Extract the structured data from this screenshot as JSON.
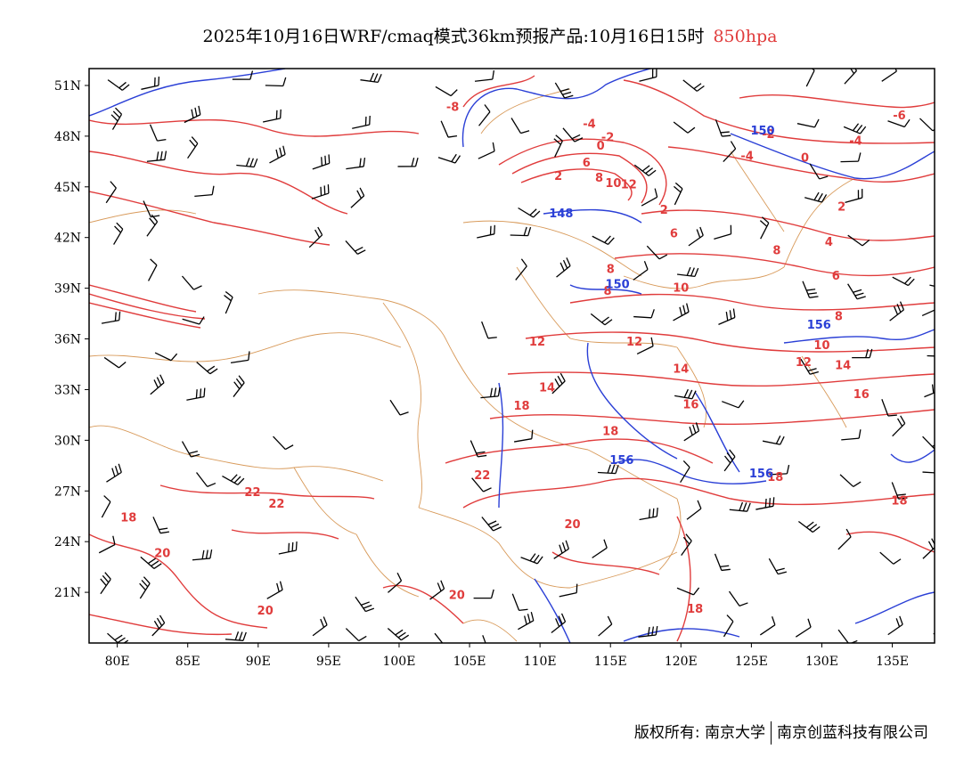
{
  "title": {
    "main": "2025年10月16日WRF/cmaq模式36km预报产品:10月16日15时",
    "level": "850hpa",
    "level_color": "#e03c3c"
  },
  "axes": {
    "lon_labels": [
      "80E",
      "85E",
      "90E",
      "95E",
      "100E",
      "105E",
      "110E",
      "115E",
      "120E",
      "125E",
      "130E",
      "135E"
    ],
    "lon_values": [
      80,
      85,
      90,
      95,
      100,
      105,
      110,
      115,
      120,
      125,
      130,
      135
    ],
    "lat_labels": [
      "51N",
      "48N",
      "45N",
      "42N",
      "39N",
      "36N",
      "33N",
      "30N",
      "27N",
      "24N",
      "21N"
    ],
    "lat_values": [
      51,
      48,
      45,
      42,
      39,
      36,
      33,
      30,
      27,
      24,
      21
    ],
    "lon_range": [
      78,
      138
    ],
    "lat_range": [
      18,
      52
    ]
  },
  "contour_labels": {
    "temperature_color": "#e03c3c",
    "height_color": "#2a3fd6",
    "temperature": [
      {
        "text": "-8",
        "lon": 103.8,
        "lat": 49.5
      },
      {
        "text": "-4",
        "lon": 113.5,
        "lat": 48.5
      },
      {
        "text": "-2",
        "lon": 114.8,
        "lat": 47.7
      },
      {
        "text": "0",
        "lon": 114.3,
        "lat": 47.2
      },
      {
        "text": "2",
        "lon": 111.3,
        "lat": 45.4
      },
      {
        "text": "6",
        "lon": 113.3,
        "lat": 46.2
      },
      {
        "text": "8",
        "lon": 114.2,
        "lat": 45.3
      },
      {
        "text": "10",
        "lon": 115.2,
        "lat": 45.0
      },
      {
        "text": "12",
        "lon": 116.3,
        "lat": 44.9
      },
      {
        "text": "-6",
        "lon": 135.5,
        "lat": 49.0
      },
      {
        "text": "-4",
        "lon": 132.4,
        "lat": 47.5
      },
      {
        "text": "-2",
        "lon": 126.2,
        "lat": 47.9
      },
      {
        "text": "-4",
        "lon": 124.7,
        "lat": 46.6
      },
      {
        "text": "0",
        "lon": 128.8,
        "lat": 46.5
      },
      {
        "text": "2",
        "lon": 118.8,
        "lat": 43.4
      },
      {
        "text": "2",
        "lon": 131.4,
        "lat": 43.6
      },
      {
        "text": "6",
        "lon": 119.5,
        "lat": 42.0
      },
      {
        "text": "4",
        "lon": 130.5,
        "lat": 41.5
      },
      {
        "text": "8",
        "lon": 126.8,
        "lat": 41.0
      },
      {
        "text": "6",
        "lon": 131.0,
        "lat": 39.5
      },
      {
        "text": "8",
        "lon": 115.0,
        "lat": 39.9
      },
      {
        "text": "8",
        "lon": 114.8,
        "lat": 38.6
      },
      {
        "text": "10",
        "lon": 120.0,
        "lat": 38.8
      },
      {
        "text": "8",
        "lon": 131.2,
        "lat": 37.1
      },
      {
        "text": "12",
        "lon": 109.8,
        "lat": 35.6
      },
      {
        "text": "12",
        "lon": 116.7,
        "lat": 35.6
      },
      {
        "text": "10",
        "lon": 130.0,
        "lat": 35.4
      },
      {
        "text": "12",
        "lon": 128.7,
        "lat": 34.4
      },
      {
        "text": "14",
        "lon": 120.0,
        "lat": 34.0
      },
      {
        "text": "14",
        "lon": 131.5,
        "lat": 34.2
      },
      {
        "text": "14",
        "lon": 110.5,
        "lat": 32.9
      },
      {
        "text": "16",
        "lon": 132.8,
        "lat": 32.5
      },
      {
        "text": "18",
        "lon": 108.7,
        "lat": 31.8
      },
      {
        "text": "16",
        "lon": 120.7,
        "lat": 31.9
      },
      {
        "text": "18",
        "lon": 115.0,
        "lat": 30.3
      },
      {
        "text": "22",
        "lon": 105.9,
        "lat": 27.7
      },
      {
        "text": "18",
        "lon": 126.7,
        "lat": 27.6
      },
      {
        "text": "22",
        "lon": 89.6,
        "lat": 26.7
      },
      {
        "text": "22",
        "lon": 91.3,
        "lat": 26.0
      },
      {
        "text": "18",
        "lon": 135.5,
        "lat": 26.2
      },
      {
        "text": "18",
        "lon": 80.8,
        "lat": 25.2
      },
      {
        "text": "20",
        "lon": 112.3,
        "lat": 24.8
      },
      {
        "text": "20",
        "lon": 83.2,
        "lat": 23.1
      },
      {
        "text": "20",
        "lon": 104.1,
        "lat": 20.6
      },
      {
        "text": "20",
        "lon": 90.5,
        "lat": 19.7
      },
      {
        "text": "18",
        "lon": 121.0,
        "lat": 19.8
      }
    ],
    "height": [
      {
        "text": "148",
        "lon": 111.5,
        "lat": 43.2
      },
      {
        "text": "150",
        "lon": 125.8,
        "lat": 48.1
      },
      {
        "text": "150",
        "lon": 115.5,
        "lat": 39.0
      },
      {
        "text": "156",
        "lon": 129.8,
        "lat": 36.6
      },
      {
        "text": "156",
        "lon": 115.8,
        "lat": 28.6
      },
      {
        "text": "156",
        "lon": 125.7,
        "lat": 27.8
      }
    ]
  },
  "footer": {
    "copyright": "版权所有: 南京大学",
    "company": "南京创蓝科技有限公司"
  }
}
